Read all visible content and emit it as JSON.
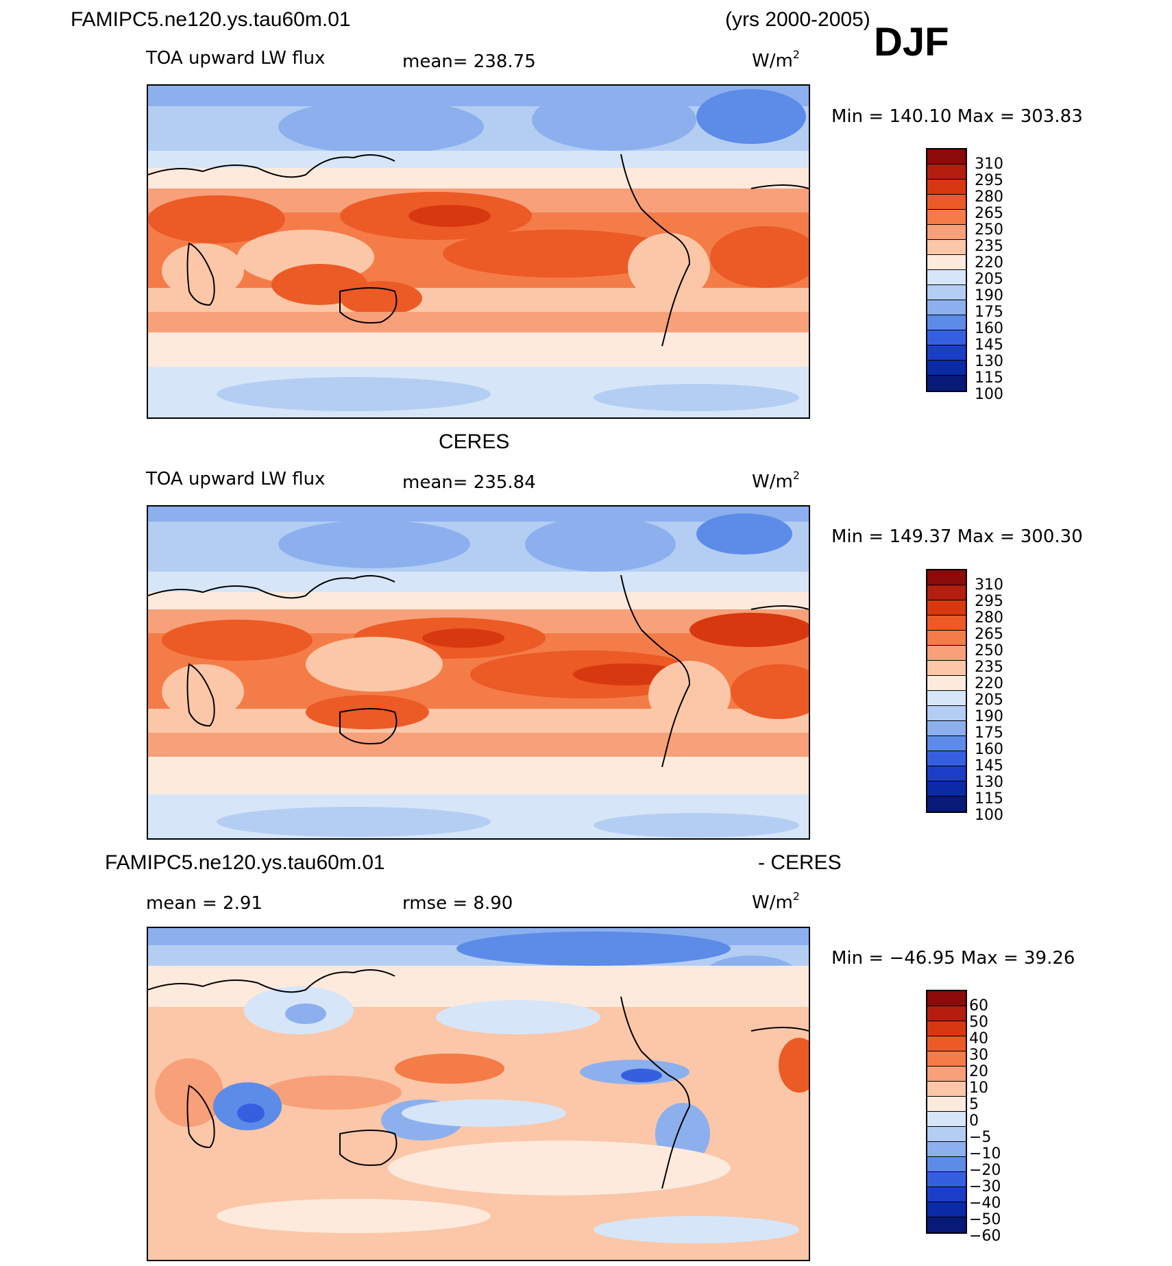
{
  "header": {
    "case_name": "FAMIPC5.ne120.ys.tau60m.01",
    "years": "(yrs 2000-2005)",
    "season": "DJF"
  },
  "panels": [
    {
      "id": "model",
      "variable": "TOA upward LW flux",
      "stat": "mean=  238.75",
      "units": "W/m",
      "units_exp": "2",
      "range": "Min  =  140.10  Max  =  303.83",
      "colorbar": {
        "labels": [
          "310",
          "295",
          "280",
          "265",
          "250",
          "235",
          "220",
          "205",
          "190",
          "175",
          "160",
          "145",
          "130",
          "115",
          "100"
        ],
        "colors": [
          "#8b0a0a",
          "#b31e0e",
          "#d8380f",
          "#ec5a25",
          "#f47c48",
          "#f7a07a",
          "#fbc7a8",
          "#feeadd",
          "#d6e6f8",
          "#b4cef3",
          "#8cb0ee",
          "#5c8ce8",
          "#3460e0",
          "#1a3ec8",
          "#0a2aa6",
          "#071a78"
        ]
      },
      "projection": {
        "type": "global cylindrical equidistant",
        "central_longitude": 180
      }
    },
    {
      "id": "obs",
      "title": "CERES",
      "variable": "TOA upward LW flux",
      "stat": "mean=  235.84",
      "units": "W/m",
      "units_exp": "2",
      "range": "Min  =  149.37  Max  =  300.30",
      "colorbar": {
        "labels": [
          "310",
          "295",
          "280",
          "265",
          "250",
          "235",
          "220",
          "205",
          "190",
          "175",
          "160",
          "145",
          "130",
          "115",
          "100"
        ],
        "colors": [
          "#8b0a0a",
          "#b31e0e",
          "#d8380f",
          "#ec5a25",
          "#f47c48",
          "#f7a07a",
          "#fbc7a8",
          "#feeadd",
          "#d6e6f8",
          "#b4cef3",
          "#8cb0ee",
          "#5c8ce8",
          "#3460e0",
          "#1a3ec8",
          "#0a2aa6",
          "#071a78"
        ]
      },
      "projection": {
        "type": "global cylindrical equidistant",
        "central_longitude": 180
      }
    },
    {
      "id": "diff",
      "title_left": "FAMIPC5.ne120.ys.tau60m.01",
      "title_right": "- CERES",
      "stat_mean": "mean  =     2.91",
      "stat_rmse": "rmse  =     8.90",
      "units": "W/m",
      "units_exp": "2",
      "range": "Min  =  −46.95  Max  =    39.26",
      "colorbar": {
        "labels": [
          "60",
          "50",
          "40",
          "30",
          "20",
          "10",
          "5",
          "0",
          "−5",
          "−10",
          "−20",
          "−30",
          "−40",
          "−50",
          "−60"
        ],
        "colors": [
          "#8b0a0a",
          "#b31e0e",
          "#d8380f",
          "#ec5a25",
          "#f47c48",
          "#f7a07a",
          "#fbc7a8",
          "#feeadd",
          "#d6e6f8",
          "#b4cef3",
          "#8cb0ee",
          "#5c8ce8",
          "#3460e0",
          "#1a3ec8",
          "#0a2aa6",
          "#071a78"
        ]
      },
      "projection": {
        "type": "global cylindrical equidistant",
        "central_longitude": 180
      }
    }
  ]
}
